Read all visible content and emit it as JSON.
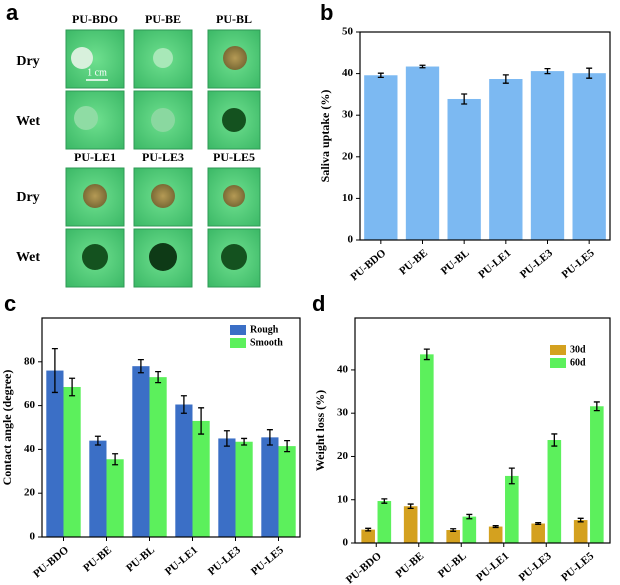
{
  "photo_panel": {
    "panel": "a",
    "top_columns": [
      "PU-BDO",
      "PU-BE",
      "PU-BL"
    ],
    "bottom_columns": [
      "PU-LE1",
      "PU-LE3",
      "PU-LE5"
    ],
    "rows": [
      "Dry",
      "Wet"
    ],
    "scale_bar": "1 cm"
  },
  "chart_data": [
    {
      "type": "bar",
      "panel": "b",
      "y_label": "Saliva uptake (%)",
      "categories": [
        "PU-BDO",
        "PU-BE",
        "PU-BL",
        "PU-LE1",
        "PU-LE3",
        "PU-LE5"
      ],
      "series": [
        {
          "color": "#7cb9f2",
          "values": [
            39.6,
            41.7,
            33.9,
            38.7,
            40.6,
            40.1
          ],
          "errors": [
            0.5,
            0.3,
            1.2,
            1.0,
            0.6,
            1.2
          ]
        }
      ],
      "ylim": [
        0,
        50
      ],
      "yticks": [
        0,
        10,
        20,
        30,
        40,
        50
      ]
    },
    {
      "type": "bar",
      "panel": "c",
      "y_label": "Contact angle (degree)",
      "legend": "upper-right",
      "categories": [
        "PU-BDO",
        "PU-BE",
        "PU-BL",
        "PU-LE1",
        "PU-LE3",
        "PU-LE5"
      ],
      "series": [
        {
          "name": "Rough",
          "color": "#3b6fc6",
          "values": [
            76,
            44,
            78,
            60.5,
            45,
            45.5
          ],
          "errors": [
            10,
            2,
            3,
            4,
            3.5,
            3.5
          ]
        },
        {
          "name": "Smooth",
          "color": "#5cf05c",
          "values": [
            68.5,
            35.5,
            73,
            53,
            43.5,
            41.5
          ],
          "errors": [
            4,
            2.5,
            2.5,
            6,
            1.5,
            2.5
          ]
        }
      ],
      "ylim": [
        0,
        100
      ],
      "yticks": [
        0,
        20,
        40,
        60,
        80
      ]
    },
    {
      "type": "bar",
      "panel": "d",
      "y_label": "Weight loss (%)",
      "legend": "upper-right",
      "categories": [
        "PU-BDO",
        "PU-BE",
        "PU-BL",
        "PU-LE1",
        "PU-LE3",
        "PU-LE5"
      ],
      "series": [
        {
          "name": "30d",
          "color": "#d4a11f",
          "values": [
            3.1,
            8.5,
            3.0,
            3.8,
            4.5,
            5.3
          ],
          "errors": [
            0.3,
            0.5,
            0.3,
            0.2,
            0.2,
            0.4
          ]
        },
        {
          "name": "60d",
          "color": "#5cf05c",
          "values": [
            9.7,
            43.6,
            6.1,
            15.5,
            23.8,
            31.6
          ],
          "errors": [
            0.5,
            1.2,
            0.5,
            1.8,
            1.4,
            1.0
          ]
        }
      ],
      "ylim": [
        0,
        52
      ],
      "yticks": [
        0,
        10,
        20,
        30,
        40
      ]
    }
  ]
}
